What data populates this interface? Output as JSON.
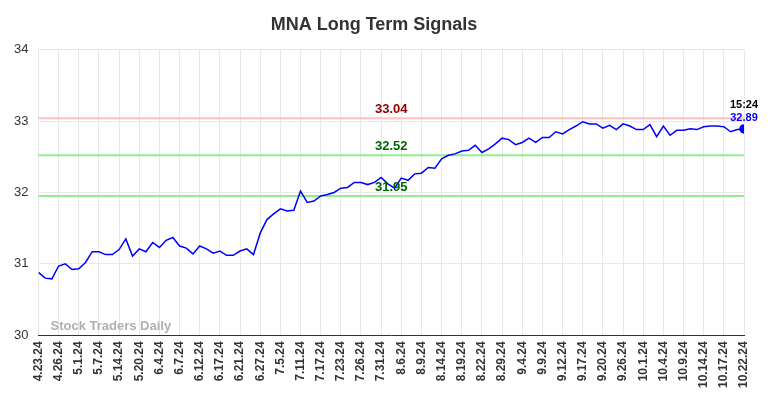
{
  "chart_data": {
    "type": "line",
    "title": "MNA Long Term Signals",
    "categories": [
      "4.23.24",
      null,
      null,
      "4.26.24",
      null,
      null,
      "5.1.24",
      null,
      null,
      "5.7.24",
      null,
      null,
      "5.14.24",
      null,
      null,
      "5.20.24",
      null,
      null,
      "6.4.24",
      null,
      null,
      "6.7.24",
      null,
      null,
      "6.12.24",
      null,
      null,
      "6.17.24",
      null,
      null,
      "6.21.24",
      null,
      null,
      "6.27.24",
      null,
      null,
      "7.5.24",
      null,
      null,
      "7.11.24",
      null,
      null,
      "7.17.24",
      null,
      null,
      "7.23.24",
      null,
      null,
      "7.26.24",
      null,
      null,
      "7.31.24",
      null,
      null,
      "8.6.24",
      null,
      null,
      "8.9.24",
      null,
      null,
      "8.14.24",
      null,
      null,
      "8.19.24",
      null,
      null,
      "8.22.24",
      null,
      null,
      "8.29.24",
      null,
      null,
      "9.4.24",
      null,
      null,
      "9.9.24",
      null,
      null,
      "9.12.24",
      null,
      null,
      "9.17.24",
      null,
      null,
      "9.20.24",
      null,
      null,
      "9.26.24",
      null,
      null,
      "10.1.24",
      null,
      null,
      "10.4.24",
      null,
      null,
      "10.9.24",
      null,
      null,
      "10.14.24",
      null,
      null,
      "10.17.24",
      null,
      null,
      "10.22.24"
    ],
    "values": [
      30.88,
      30.8,
      30.79,
      30.97,
      31.0,
      30.92,
      30.93,
      31.02,
      31.17,
      31.17,
      31.13,
      31.13,
      31.2,
      31.35,
      31.11,
      31.21,
      31.17,
      31.3,
      31.23,
      31.33,
      31.37,
      31.25,
      31.22,
      31.14,
      31.25,
      31.21,
      31.15,
      31.18,
      31.12,
      31.12,
      31.18,
      31.21,
      31.13,
      31.43,
      31.62,
      31.7,
      31.77,
      31.74,
      31.75,
      32.02,
      31.86,
      31.88,
      31.95,
      31.97,
      32.0,
      32.06,
      32.07,
      32.14,
      32.14,
      32.11,
      32.14,
      32.21,
      32.12,
      32.06,
      32.2,
      32.17,
      32.26,
      32.27,
      32.35,
      32.34,
      32.47,
      32.52,
      32.54,
      32.58,
      32.59,
      32.66,
      32.56,
      32.61,
      32.68,
      32.76,
      32.74,
      32.67,
      32.7,
      32.76,
      32.7,
      32.77,
      32.77,
      32.85,
      32.82,
      32.88,
      32.93,
      32.99,
      32.96,
      32.96,
      32.9,
      32.94,
      32.88,
      32.96,
      32.93,
      32.88,
      32.88,
      32.95,
      32.78,
      32.93,
      32.8,
      32.87,
      32.87,
      32.89,
      32.88,
      32.92,
      32.93,
      32.93,
      32.92,
      32.85,
      32.88,
      32.89
    ],
    "color": "#0000ff",
    "ylim": [
      30,
      34
    ],
    "yticks": [
      30,
      31,
      32,
      33,
      34
    ],
    "grid": true,
    "annotations": [
      {
        "text": "33.04",
        "y": 33.04,
        "color": "#8b0000"
      },
      {
        "text": "32.52",
        "y": 32.52,
        "color": "#006400"
      },
      {
        "text": "31.95",
        "y": 31.95,
        "color": "#006400"
      }
    ],
    "last_point": {
      "time": "15:24",
      "value": 32.89
    },
    "watermark": "Stock Traders Daily"
  }
}
